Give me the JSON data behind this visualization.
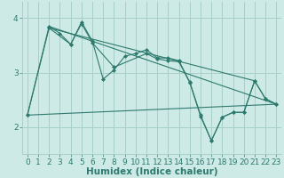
{
  "xlabel": "Humidex (Indice chaleur)",
  "bg_color": "#ceeae6",
  "line_color": "#2d7a6e",
  "grid_color": "#a8cfc9",
  "xlim": [
    -0.5,
    23.5
  ],
  "ylim": [
    1.5,
    4.3
  ],
  "yticks": [
    2,
    3,
    4
  ],
  "xticks": [
    0,
    1,
    2,
    3,
    4,
    5,
    6,
    7,
    8,
    9,
    10,
    11,
    12,
    13,
    14,
    15,
    16,
    17,
    18,
    19,
    20,
    21,
    22,
    23
  ],
  "series": [
    {
      "x": [
        0,
        2,
        3,
        4,
        5,
        6,
        7,
        8,
        9,
        10,
        11,
        12,
        13,
        14,
        15,
        16,
        17,
        18,
        19,
        20,
        21,
        22,
        23
      ],
      "y": [
        2.22,
        3.85,
        3.72,
        3.52,
        3.93,
        3.58,
        2.88,
        3.05,
        3.3,
        3.35,
        3.42,
        3.27,
        3.27,
        3.22,
        2.83,
        2.22,
        1.75,
        2.18,
        2.27,
        2.27,
        2.85,
        2.52,
        2.42
      ],
      "marker": true
    },
    {
      "x": [
        0,
        2,
        4,
        5,
        6,
        8,
        11,
        12,
        13,
        14,
        15,
        16,
        17,
        18,
        19,
        20,
        21,
        22,
        23
      ],
      "y": [
        2.22,
        3.82,
        3.52,
        3.9,
        3.55,
        3.1,
        3.35,
        3.25,
        3.22,
        3.2,
        2.82,
        2.2,
        1.75,
        2.18,
        2.27,
        2.27,
        2.85,
        2.52,
        2.42
      ],
      "marker": true
    },
    {
      "x": [
        0,
        23
      ],
      "y": [
        2.22,
        2.42
      ],
      "marker": false
    },
    {
      "x": [
        2,
        23
      ],
      "y": [
        3.85,
        2.42
      ],
      "marker": false
    },
    {
      "x": [
        2,
        21
      ],
      "y": [
        3.82,
        2.85
      ],
      "marker": false
    }
  ]
}
